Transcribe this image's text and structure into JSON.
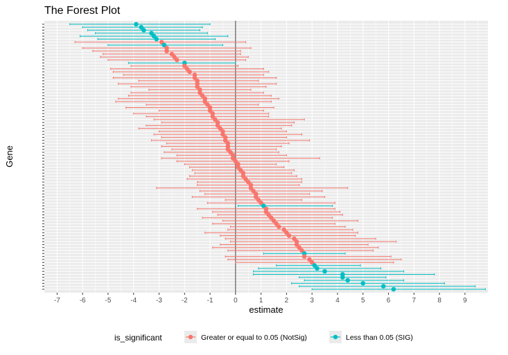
{
  "chart_data": {
    "type": "forest",
    "title": "The Forest Plot",
    "xlabel": "estimate",
    "ylabel": "Gene",
    "xlim": [
      -7.5,
      9.9
    ],
    "xticks": [
      -7,
      -6,
      -5,
      -4,
      -3,
      -2,
      -1,
      0,
      1,
      2,
      3,
      4,
      5,
      6,
      7,
      8,
      9
    ],
    "reference_line": 0,
    "grid": true,
    "legend": {
      "title": "is_significant",
      "position": "bottom",
      "entries": [
        {
          "key": "NotSig",
          "label": "Greater or equal to 0.05 (NotSig)",
          "color": "#F8766D"
        },
        {
          "key": "SIG",
          "label": "Less than 0.05 (SIG)",
          "color": "#00BFC4"
        }
      ]
    },
    "colors": {
      "NotSig": "#F8766D",
      "SIG": "#00BFC4",
      "panel": "#EBEBEB",
      "grid": "#FFFFFF",
      "refline": "#4D4D4D"
    },
    "points": [
      {
        "est": -3.9,
        "lo": -6.5,
        "hi": -1.0,
        "sig": "SIG"
      },
      {
        "est": -3.7,
        "lo": -6.0,
        "hi": -1.3,
        "sig": "SIG"
      },
      {
        "est": -3.6,
        "lo": -5.8,
        "hi": -1.4,
        "sig": "SIG"
      },
      {
        "est": -3.3,
        "lo": -5.5,
        "hi": -1.1,
        "sig": "SIG"
      },
      {
        "est": -3.2,
        "lo": -6.1,
        "hi": -0.3,
        "sig": "SIG"
      },
      {
        "est": -3.1,
        "lo": -5.4,
        "hi": -0.8,
        "sig": "SIG"
      },
      {
        "est": -2.9,
        "lo": -6.3,
        "hi": 0.4,
        "sig": "NotSig"
      },
      {
        "est": -2.8,
        "lo": -5.0,
        "hi": -0.5,
        "sig": "SIG"
      },
      {
        "est": -2.7,
        "lo": -6.0,
        "hi": 0.6,
        "sig": "NotSig"
      },
      {
        "est": -2.7,
        "lo": -5.6,
        "hi": 0.2,
        "sig": "NotSig"
      },
      {
        "est": -2.5,
        "lo": -5.2,
        "hi": 0.2,
        "sig": "NotSig"
      },
      {
        "est": -2.4,
        "lo": -5.3,
        "hi": 0.5,
        "sig": "NotSig"
      },
      {
        "est": -2.3,
        "lo": -5.0,
        "hi": 0.4,
        "sig": "NotSig"
      },
      {
        "est": -2.0,
        "lo": -4.2,
        "hi": 0.0,
        "sig": "SIG"
      },
      {
        "est": -2.0,
        "lo": -4.1,
        "hi": 0.1,
        "sig": "NotSig"
      },
      {
        "est": -1.9,
        "lo": -4.9,
        "hi": 1.1,
        "sig": "NotSig"
      },
      {
        "est": -1.8,
        "lo": -4.8,
        "hi": 1.3,
        "sig": "NotSig"
      },
      {
        "est": -1.6,
        "lo": -4.4,
        "hi": 1.1,
        "sig": "NotSig"
      },
      {
        "est": -1.6,
        "lo": -4.8,
        "hi": 1.6,
        "sig": "NotSig"
      },
      {
        "est": -1.5,
        "lo": -3.8,
        "hi": 0.9,
        "sig": "NotSig"
      },
      {
        "est": -1.5,
        "lo": -4.6,
        "hi": 1.6,
        "sig": "NotSig"
      },
      {
        "est": -1.5,
        "lo": -4.1,
        "hi": 1.2,
        "sig": "NotSig"
      },
      {
        "est": -1.4,
        "lo": -3.4,
        "hi": 0.6,
        "sig": "NotSig"
      },
      {
        "est": -1.4,
        "lo": -4.1,
        "hi": 1.1,
        "sig": "NotSig"
      },
      {
        "est": -1.3,
        "lo": -4.2,
        "hi": 1.4,
        "sig": "NotSig"
      },
      {
        "est": -1.2,
        "lo": -4.6,
        "hi": 1.7,
        "sig": "NotSig"
      },
      {
        "est": -1.2,
        "lo": -4.7,
        "hi": 1.4,
        "sig": "NotSig"
      },
      {
        "est": -1.1,
        "lo": -3.5,
        "hi": 0.9,
        "sig": "NotSig"
      },
      {
        "est": -1.0,
        "lo": -4.3,
        "hi": 1.5,
        "sig": "NotSig"
      },
      {
        "est": -1.0,
        "lo": -3.0,
        "hi": 1.1,
        "sig": "NotSig"
      },
      {
        "est": -0.9,
        "lo": -4.0,
        "hi": 1.3,
        "sig": "NotSig"
      },
      {
        "est": -0.9,
        "lo": -3.5,
        "hi": 1.3,
        "sig": "NotSig"
      },
      {
        "est": -0.8,
        "lo": -3.2,
        "hi": 2.7,
        "sig": "NotSig"
      },
      {
        "est": -0.7,
        "lo": -2.9,
        "hi": 2.3,
        "sig": "NotSig"
      },
      {
        "est": -0.7,
        "lo": -3.5,
        "hi": 2.2,
        "sig": "NotSig"
      },
      {
        "est": -0.6,
        "lo": -3.8,
        "hi": 1.8,
        "sig": "NotSig"
      },
      {
        "est": -0.5,
        "lo": -3.0,
        "hi": 2.0,
        "sig": "NotSig"
      },
      {
        "est": -0.5,
        "lo": -3.2,
        "hi": 2.6,
        "sig": "NotSig"
      },
      {
        "est": -0.4,
        "lo": -2.9,
        "hi": 2.0,
        "sig": "NotSig"
      },
      {
        "est": -0.4,
        "lo": -3.3,
        "hi": 2.9,
        "sig": "NotSig"
      },
      {
        "est": -0.3,
        "lo": -2.7,
        "hi": 2.1,
        "sig": "NotSig"
      },
      {
        "est": -0.3,
        "lo": -2.9,
        "hi": 1.8,
        "sig": "NotSig"
      },
      {
        "est": -0.3,
        "lo": -2.5,
        "hi": 1.6,
        "sig": "NotSig"
      },
      {
        "est": -0.2,
        "lo": -2.8,
        "hi": 1.7,
        "sig": "NotSig"
      },
      {
        "est": -0.1,
        "lo": -2.3,
        "hi": 2.0,
        "sig": "NotSig"
      },
      {
        "est": -0.1,
        "lo": -2.9,
        "hi": 3.3,
        "sig": "NotSig"
      },
      {
        "est": 0.0,
        "lo": -2.3,
        "hi": 2.1,
        "sig": "NotSig"
      },
      {
        "est": 0.1,
        "lo": -2.0,
        "hi": 1.6,
        "sig": "NotSig"
      },
      {
        "est": 0.1,
        "lo": -1.8,
        "hi": 1.9,
        "sig": "NotSig"
      },
      {
        "est": 0.2,
        "lo": -1.7,
        "hi": 2.3,
        "sig": "NotSig"
      },
      {
        "est": 0.3,
        "lo": -1.6,
        "hi": 2.2,
        "sig": "NotSig"
      },
      {
        "est": 0.3,
        "lo": -1.8,
        "hi": 2.4,
        "sig": "NotSig"
      },
      {
        "est": 0.4,
        "lo": -1.9,
        "hi": 2.6,
        "sig": "NotSig"
      },
      {
        "est": 0.5,
        "lo": -1.5,
        "hi": 2.6,
        "sig": "NotSig"
      },
      {
        "est": 0.6,
        "lo": -1.5,
        "hi": 2.5,
        "sig": "NotSig"
      },
      {
        "est": 0.6,
        "lo": -3.1,
        "hi": 4.4,
        "sig": "NotSig"
      },
      {
        "est": 0.7,
        "lo": -1.4,
        "hi": 3.4,
        "sig": "NotSig"
      },
      {
        "est": 0.8,
        "lo": -1.2,
        "hi": 2.9,
        "sig": "NotSig"
      },
      {
        "est": 0.8,
        "lo": -1.7,
        "hi": 3.5,
        "sig": "NotSig"
      },
      {
        "est": 0.9,
        "lo": -0.4,
        "hi": 2.6,
        "sig": "NotSig"
      },
      {
        "est": 1.0,
        "lo": -1.1,
        "hi": 3.9,
        "sig": "NotSig"
      },
      {
        "est": 1.1,
        "lo": 0.1,
        "hi": 3.8,
        "sig": "SIG"
      },
      {
        "est": 1.2,
        "lo": -1.5,
        "hi": 3.9,
        "sig": "NotSig"
      },
      {
        "est": 1.2,
        "lo": -0.9,
        "hi": 4.1,
        "sig": "NotSig"
      },
      {
        "est": 1.3,
        "lo": -0.7,
        "hi": 4.2,
        "sig": "NotSig"
      },
      {
        "est": 1.4,
        "lo": -1.3,
        "hi": 3.8,
        "sig": "NotSig"
      },
      {
        "est": 1.5,
        "lo": -0.5,
        "hi": 4.8,
        "sig": "NotSig"
      },
      {
        "est": 1.6,
        "lo": -0.9,
        "hi": 3.9,
        "sig": "NotSig"
      },
      {
        "est": 1.7,
        "lo": -0.2,
        "hi": 4.3,
        "sig": "NotSig"
      },
      {
        "est": 1.9,
        "lo": -0.3,
        "hi": 4.6,
        "sig": "NotSig"
      },
      {
        "est": 2.0,
        "lo": -1.2,
        "hi": 4.8,
        "sig": "NotSig"
      },
      {
        "est": 2.1,
        "lo": -0.6,
        "hi": 4.7,
        "sig": "NotSig"
      },
      {
        "est": 2.3,
        "lo": -0.4,
        "hi": 5.5,
        "sig": "NotSig"
      },
      {
        "est": 2.4,
        "lo": -0.2,
        "hi": 6.3,
        "sig": "NotSig"
      },
      {
        "est": 2.4,
        "lo": -0.6,
        "hi": 5.2,
        "sig": "NotSig"
      },
      {
        "est": 2.5,
        "lo": -0.9,
        "hi": 5.6,
        "sig": "NotSig"
      },
      {
        "est": 2.6,
        "lo": -0.3,
        "hi": 5.4,
        "sig": "NotSig"
      },
      {
        "est": 2.7,
        "lo": 1.1,
        "hi": 4.3,
        "sig": "SIG"
      },
      {
        "est": 2.7,
        "lo": -0.4,
        "hi": 6.1,
        "sig": "NotSig"
      },
      {
        "est": 2.9,
        "lo": -0.3,
        "hi": 6.5,
        "sig": "NotSig"
      },
      {
        "est": 3.0,
        "lo": 0.0,
        "hi": 6.2,
        "sig": "NotSig"
      },
      {
        "est": 3.1,
        "lo": 1.6,
        "hi": 4.9,
        "sig": "SIG"
      },
      {
        "est": 3.2,
        "lo": 0.9,
        "hi": 5.7,
        "sig": "SIG"
      },
      {
        "est": 3.5,
        "lo": 0.7,
        "hi": 6.6,
        "sig": "SIG"
      },
      {
        "est": 4.2,
        "lo": 0.7,
        "hi": 7.8,
        "sig": "SIG"
      },
      {
        "est": 4.2,
        "lo": 2.5,
        "hi": 5.9,
        "sig": "SIG"
      },
      {
        "est": 4.4,
        "lo": 2.7,
        "hi": 6.6,
        "sig": "SIG"
      },
      {
        "est": 5.0,
        "lo": 2.2,
        "hi": 8.2,
        "sig": "SIG"
      },
      {
        "est": 5.8,
        "lo": 2.5,
        "hi": 9.4,
        "sig": "SIG"
      },
      {
        "est": 6.2,
        "lo": 3.0,
        "hi": 9.8,
        "sig": "SIG"
      }
    ]
  }
}
